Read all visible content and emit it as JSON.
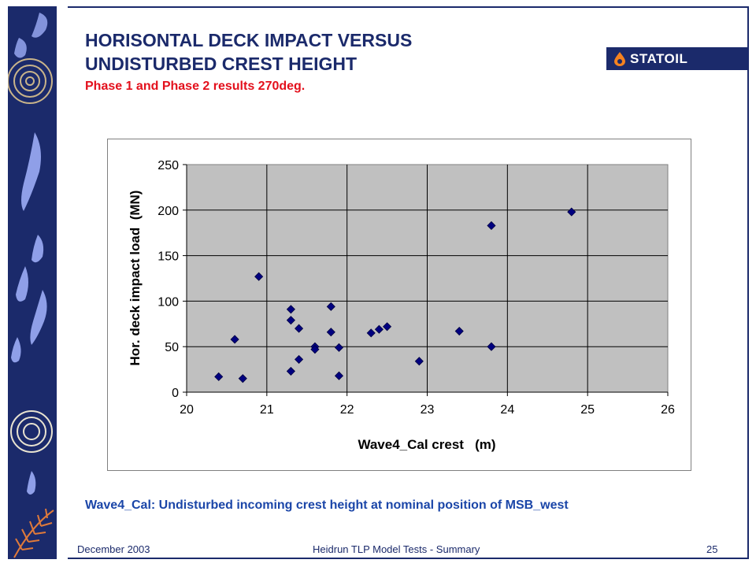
{
  "slide": {
    "title_line1": "HORISONTAL DECK IMPACT VERSUS",
    "title_line2": "UNDISTURBED CREST HEIGHT",
    "subtitle": "Phase 1 and Phase 2 results 270deg.",
    "logo_text": "STATOIL",
    "caption": "Wave4_Cal: Undisturbed incoming crest height at nominal position of MSB_west",
    "footer_date": "December 2003",
    "footer_title": "Heidrun TLP Model Tests - Summary",
    "footer_page": "25"
  },
  "colors": {
    "brand_navy": "#1b2a6b",
    "subtitle_red": "#e3101c",
    "caption_blue": "#1b46a8",
    "logo_orange": "#f58220",
    "plot_bg": "#c0c0c0",
    "marker": "#000080"
  },
  "chart_data": {
    "type": "scatter",
    "xlabel": "Wave4_Cal crest   (m)",
    "ylabel": "Hor. deck impact load  (MN)",
    "xlim": [
      20,
      26
    ],
    "ylim": [
      0,
      250
    ],
    "xticks": [
      "20",
      "21",
      "22",
      "23",
      "24",
      "25",
      "26"
    ],
    "yticks": [
      "0",
      "50",
      "100",
      "150",
      "200",
      "250"
    ],
    "grid": true,
    "legend": "none",
    "points": [
      {
        "x": 20.4,
        "y": 17
      },
      {
        "x": 20.6,
        "y": 58
      },
      {
        "x": 20.7,
        "y": 15
      },
      {
        "x": 20.9,
        "y": 127
      },
      {
        "x": 21.3,
        "y": 91
      },
      {
        "x": 21.3,
        "y": 79
      },
      {
        "x": 21.3,
        "y": 23
      },
      {
        "x": 21.4,
        "y": 70
      },
      {
        "x": 21.4,
        "y": 36
      },
      {
        "x": 21.6,
        "y": 50
      },
      {
        "x": 21.6,
        "y": 47
      },
      {
        "x": 21.8,
        "y": 94
      },
      {
        "x": 21.8,
        "y": 66
      },
      {
        "x": 21.9,
        "y": 49
      },
      {
        "x": 21.9,
        "y": 18
      },
      {
        "x": 22.3,
        "y": 65
      },
      {
        "x": 22.4,
        "y": 69
      },
      {
        "x": 22.5,
        "y": 72
      },
      {
        "x": 22.9,
        "y": 34
      },
      {
        "x": 23.4,
        "y": 67
      },
      {
        "x": 23.8,
        "y": 183
      },
      {
        "x": 23.8,
        "y": 50
      },
      {
        "x": 24.8,
        "y": 198
      }
    ]
  }
}
